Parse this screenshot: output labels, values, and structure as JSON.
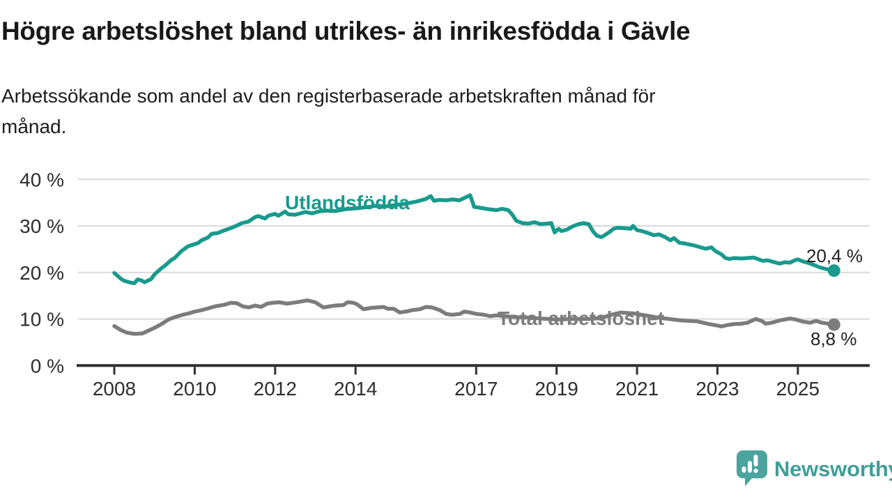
{
  "header": {
    "title": "Högre arbetslöshet bland utrikes- än inrikesfödda i Gävle",
    "subtitle_lines": [
      "Arbetssökande som andel av den registerbaserade arbetskraften månad för",
      "månad."
    ]
  },
  "logo": {
    "text": "Newsworthy",
    "icon": "speech-bubble-bar-chart-icon",
    "color": "#3f9e98",
    "icon_color": "#4ba49e"
  },
  "chart_data": {
    "type": "line",
    "title": "Högre arbetslöshet bland utrikes- än inrikesfödda i Gävle",
    "subtitle": "Arbetssökande som andel av den registerbaserade arbetskraften månad för månad.",
    "grid": "horizontal",
    "legend_position": "inline-labels",
    "x_axis": {
      "ticks": [
        2008,
        2010,
        2012,
        2014,
        2017,
        2019,
        2021,
        2023,
        2025
      ],
      "tick_labels": [
        "2008",
        "2010",
        "2012",
        "2014",
        "2017",
        "2019",
        "2021",
        "2023",
        "2025"
      ],
      "range": [
        2007.1,
        2026.8
      ]
    },
    "y_axis": {
      "ticks": [
        0,
        10,
        20,
        30,
        40
      ],
      "tick_labels": [
        "0 %",
        "10 %",
        "20 %",
        "30 %",
        "40 %"
      ],
      "range": [
        0,
        42
      ],
      "unit": "%"
    },
    "series": [
      {
        "id": "utlandsfodda",
        "name": "Utlandsfödda",
        "color": "#189a8d",
        "end_label": "20,4 %",
        "end_value": 20.4,
        "points": [
          [
            2008.0,
            19.9
          ],
          [
            2008.17,
            18.6
          ],
          [
            2008.25,
            18.2
          ],
          [
            2008.42,
            17.8
          ],
          [
            2008.5,
            17.7
          ],
          [
            2008.58,
            18.5
          ],
          [
            2008.67,
            18.3
          ],
          [
            2008.75,
            17.9
          ],
          [
            2008.92,
            18.6
          ],
          [
            2009.0,
            19.6
          ],
          [
            2009.17,
            20.9
          ],
          [
            2009.25,
            21.4
          ],
          [
            2009.42,
            22.7
          ],
          [
            2009.5,
            23.1
          ],
          [
            2009.67,
            24.6
          ],
          [
            2009.83,
            25.6
          ],
          [
            2010.0,
            26.1
          ],
          [
            2010.08,
            26.3
          ],
          [
            2010.17,
            26.9
          ],
          [
            2010.33,
            27.5
          ],
          [
            2010.42,
            28.3
          ],
          [
            2010.58,
            28.5
          ],
          [
            2010.75,
            29.1
          ],
          [
            2010.92,
            29.6
          ],
          [
            2011.0,
            29.9
          ],
          [
            2011.08,
            30.2
          ],
          [
            2011.17,
            30.6
          ],
          [
            2011.33,
            30.9
          ],
          [
            2011.5,
            31.9
          ],
          [
            2011.58,
            32.1
          ],
          [
            2011.75,
            31.6
          ],
          [
            2011.83,
            32.2
          ],
          [
            2012.0,
            32.6
          ],
          [
            2012.08,
            32.2
          ],
          [
            2012.25,
            33.1
          ],
          [
            2012.33,
            32.5
          ],
          [
            2012.5,
            32.4
          ],
          [
            2012.67,
            32.8
          ],
          [
            2012.75,
            33.0
          ],
          [
            2012.92,
            32.7
          ],
          [
            2013.08,
            33.1
          ],
          [
            2013.25,
            33.3
          ],
          [
            2013.5,
            33.2
          ],
          [
            2013.75,
            33.6
          ],
          [
            2014.0,
            33.8
          ],
          [
            2014.25,
            34.0
          ],
          [
            2014.5,
            34.3
          ],
          [
            2014.75,
            34.2
          ],
          [
            2015.0,
            34.5
          ],
          [
            2015.25,
            34.8
          ],
          [
            2015.5,
            35.2
          ],
          [
            2015.75,
            35.8
          ],
          [
            2015.87,
            36.4
          ],
          [
            2015.95,
            35.4
          ],
          [
            2016.08,
            35.6
          ],
          [
            2016.25,
            35.5
          ],
          [
            2016.42,
            35.7
          ],
          [
            2016.58,
            35.5
          ],
          [
            2016.85,
            36.6
          ],
          [
            2016.95,
            34.1
          ],
          [
            2017.1,
            33.9
          ],
          [
            2017.3,
            33.6
          ],
          [
            2017.5,
            33.4
          ],
          [
            2017.65,
            33.7
          ],
          [
            2017.8,
            33.4
          ],
          [
            2017.9,
            32.4
          ],
          [
            2018.0,
            31.1
          ],
          [
            2018.15,
            30.6
          ],
          [
            2018.3,
            30.5
          ],
          [
            2018.45,
            30.8
          ],
          [
            2018.6,
            30.4
          ],
          [
            2018.75,
            30.5
          ],
          [
            2018.87,
            30.6
          ],
          [
            2018.95,
            28.6
          ],
          [
            2019.05,
            29.4
          ],
          [
            2019.12,
            28.9
          ],
          [
            2019.25,
            29.2
          ],
          [
            2019.4,
            29.9
          ],
          [
            2019.55,
            30.4
          ],
          [
            2019.67,
            30.6
          ],
          [
            2019.8,
            30.4
          ],
          [
            2019.9,
            28.9
          ],
          [
            2020.0,
            27.9
          ],
          [
            2020.12,
            27.6
          ],
          [
            2020.3,
            28.6
          ],
          [
            2020.42,
            29.4
          ],
          [
            2020.5,
            29.6
          ],
          [
            2020.7,
            29.5
          ],
          [
            2020.85,
            29.4
          ],
          [
            2020.9,
            30.0
          ],
          [
            2021.0,
            29.1
          ],
          [
            2021.12,
            28.9
          ],
          [
            2021.3,
            28.4
          ],
          [
            2021.42,
            28.0
          ],
          [
            2021.55,
            28.2
          ],
          [
            2021.7,
            27.6
          ],
          [
            2021.83,
            26.9
          ],
          [
            2021.92,
            27.4
          ],
          [
            2022.05,
            26.4
          ],
          [
            2022.2,
            26.2
          ],
          [
            2022.37,
            25.9
          ],
          [
            2022.5,
            25.6
          ],
          [
            2022.7,
            25.1
          ],
          [
            2022.85,
            25.4
          ],
          [
            2022.95,
            24.6
          ],
          [
            2023.1,
            23.9
          ],
          [
            2023.2,
            23.1
          ],
          [
            2023.3,
            22.9
          ],
          [
            2023.42,
            23.1
          ],
          [
            2023.6,
            23.0
          ],
          [
            2023.75,
            23.1
          ],
          [
            2023.9,
            23.2
          ],
          [
            2024.0,
            22.9
          ],
          [
            2024.12,
            22.5
          ],
          [
            2024.25,
            22.6
          ],
          [
            2024.42,
            22.2
          ],
          [
            2024.55,
            21.9
          ],
          [
            2024.67,
            22.2
          ],
          [
            2024.8,
            22.1
          ],
          [
            2024.92,
            22.6
          ],
          [
            2025.0,
            22.8
          ],
          [
            2025.12,
            22.4
          ],
          [
            2025.25,
            22.1
          ],
          [
            2025.4,
            21.6
          ],
          [
            2025.55,
            21.1
          ],
          [
            2025.72,
            20.7
          ],
          [
            2025.9,
            20.4
          ]
        ]
      },
      {
        "id": "total-arbetsloshet",
        "name": "Total arbetslöshet",
        "color": "#7c7c7c",
        "end_label": "8,8 %",
        "end_value": 8.8,
        "points": [
          [
            2008.0,
            8.5
          ],
          [
            2008.17,
            7.6
          ],
          [
            2008.3,
            7.1
          ],
          [
            2008.5,
            6.8
          ],
          [
            2008.7,
            6.9
          ],
          [
            2008.9,
            7.7
          ],
          [
            2009.0,
            8.1
          ],
          [
            2009.17,
            8.9
          ],
          [
            2009.35,
            9.9
          ],
          [
            2009.5,
            10.4
          ],
          [
            2009.7,
            10.9
          ],
          [
            2009.85,
            11.2
          ],
          [
            2010.0,
            11.6
          ],
          [
            2010.17,
            11.9
          ],
          [
            2010.3,
            12.2
          ],
          [
            2010.5,
            12.7
          ],
          [
            2010.75,
            13.1
          ],
          [
            2010.9,
            13.5
          ],
          [
            2011.05,
            13.4
          ],
          [
            2011.2,
            12.7
          ],
          [
            2011.35,
            12.5
          ],
          [
            2011.5,
            12.9
          ],
          [
            2011.65,
            12.6
          ],
          [
            2011.8,
            13.3
          ],
          [
            2011.95,
            13.5
          ],
          [
            2012.1,
            13.6
          ],
          [
            2012.3,
            13.3
          ],
          [
            2012.45,
            13.5
          ],
          [
            2012.6,
            13.7
          ],
          [
            2012.8,
            14.0
          ],
          [
            2013.0,
            13.6
          ],
          [
            2013.2,
            12.5
          ],
          [
            2013.35,
            12.7
          ],
          [
            2013.5,
            12.9
          ],
          [
            2013.7,
            13.0
          ],
          [
            2013.8,
            13.6
          ],
          [
            2013.95,
            13.5
          ],
          [
            2014.05,
            13.1
          ],
          [
            2014.2,
            12.1
          ],
          [
            2014.4,
            12.4
          ],
          [
            2014.55,
            12.5
          ],
          [
            2014.7,
            12.6
          ],
          [
            2014.8,
            12.2
          ],
          [
            2014.95,
            12.2
          ],
          [
            2015.1,
            11.4
          ],
          [
            2015.25,
            11.6
          ],
          [
            2015.4,
            11.9
          ],
          [
            2015.6,
            12.1
          ],
          [
            2015.75,
            12.6
          ],
          [
            2015.9,
            12.5
          ],
          [
            2016.1,
            11.9
          ],
          [
            2016.25,
            11.1
          ],
          [
            2016.4,
            10.9
          ],
          [
            2016.6,
            11.1
          ],
          [
            2016.7,
            11.6
          ],
          [
            2016.85,
            11.4
          ],
          [
            2017.0,
            11.1
          ],
          [
            2017.2,
            10.9
          ],
          [
            2017.35,
            10.6
          ],
          [
            2017.5,
            10.8
          ],
          [
            2017.7,
            10.6
          ],
          [
            2018.0,
            10.4
          ],
          [
            2018.3,
            10.3
          ],
          [
            2018.6,
            10.1
          ],
          [
            2019.0,
            9.9
          ],
          [
            2019.4,
            10.0
          ],
          [
            2019.8,
            10.0
          ],
          [
            2020.1,
            10.2
          ],
          [
            2020.4,
            11.0
          ],
          [
            2020.6,
            11.4
          ],
          [
            2020.9,
            11.2
          ],
          [
            2021.2,
            10.8
          ],
          [
            2021.5,
            10.3
          ],
          [
            2021.8,
            10.0
          ],
          [
            2022.1,
            9.7
          ],
          [
            2022.3,
            9.6
          ],
          [
            2022.5,
            9.5
          ],
          [
            2022.65,
            9.2
          ],
          [
            2022.8,
            8.9
          ],
          [
            2023.0,
            8.6
          ],
          [
            2023.1,
            8.4
          ],
          [
            2023.25,
            8.7
          ],
          [
            2023.4,
            8.9
          ],
          [
            2023.6,
            9.0
          ],
          [
            2023.75,
            9.2
          ],
          [
            2023.95,
            10.0
          ],
          [
            2024.1,
            9.6
          ],
          [
            2024.2,
            9.0
          ],
          [
            2024.35,
            9.2
          ],
          [
            2024.55,
            9.7
          ],
          [
            2024.8,
            10.1
          ],
          [
            2024.95,
            9.9
          ],
          [
            2025.1,
            9.5
          ],
          [
            2025.3,
            9.2
          ],
          [
            2025.45,
            9.6
          ],
          [
            2025.6,
            9.2
          ],
          [
            2025.75,
            9.0
          ],
          [
            2025.9,
            8.8
          ]
        ]
      }
    ]
  }
}
